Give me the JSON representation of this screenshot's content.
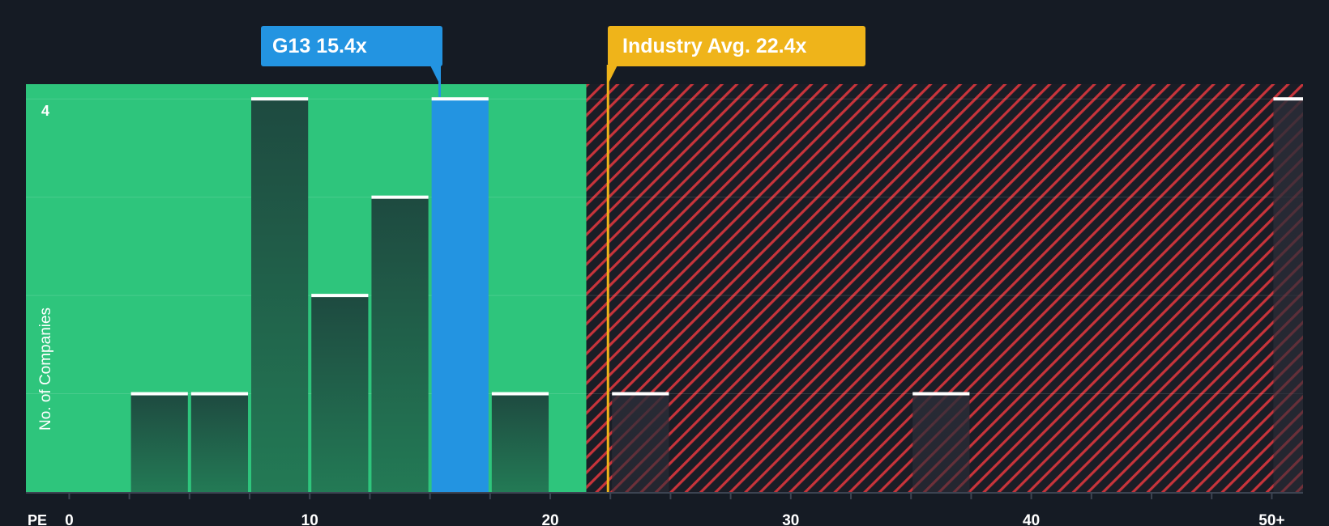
{
  "chart_data": {
    "type": "bar",
    "title": "",
    "xlabel": "PE",
    "ylabel": "No. of Companies",
    "x_ticks": [
      {
        "value": 0,
        "label": "0"
      },
      {
        "value": 10,
        "label": "10"
      },
      {
        "value": 20,
        "label": "20"
      },
      {
        "value": 30,
        "label": "30"
      },
      {
        "value": 40,
        "label": "40"
      },
      {
        "value": 50,
        "label": "50+"
      }
    ],
    "y_ticks": [
      {
        "value": 4,
        "label": "4"
      }
    ],
    "xlim": [
      -1.8,
      51.3
    ],
    "ylim": [
      0,
      4.15
    ],
    "bin_width": 2.5,
    "bins": [
      {
        "start": 2.5,
        "count": 1
      },
      {
        "start": 5.0,
        "count": 1
      },
      {
        "start": 7.5,
        "count": 4
      },
      {
        "start": 10.0,
        "count": 2
      },
      {
        "start": 12.5,
        "count": 3
      },
      {
        "start": 15.0,
        "count": 4,
        "highlight": true
      },
      {
        "start": 17.5,
        "count": 1
      },
      {
        "start": 22.5,
        "count": 1
      },
      {
        "start": 35.0,
        "count": 1
      },
      {
        "start": 50.0,
        "count": 4
      }
    ],
    "fair_value_upper": 21.5,
    "company": {
      "ticker": "G13",
      "pe": 15.4,
      "label": "G13 15.4x"
    },
    "industry": {
      "name": "Industry Avg.",
      "pe": 22.4,
      "label": "Industry Avg. 22.4x"
    }
  },
  "colors": {
    "background": "#151b24",
    "green_zone": "#2ec57c",
    "red_hatch": "#c8343b",
    "bar_dark": "#1f4a3f",
    "bar_highlight": "#2394e1",
    "industry": "#efb41a",
    "axis_text": "#ffffff"
  }
}
